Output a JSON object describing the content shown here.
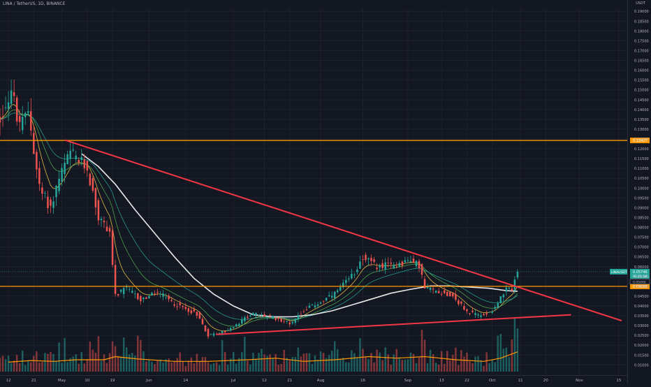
{
  "header": {
    "symbol_title": "LINA / TetherUS, 1D, BINANCE"
  },
  "axis": {
    "unit": "USDT"
  },
  "chart_data": {
    "type": "candlestick",
    "title": "LINA / TetherUS, 1D, BINANCE",
    "y_unit": "USDT",
    "ylim": [
      0.0055,
      0.1915
    ],
    "xlim": [
      "2021-04-09",
      "2021-11-18"
    ],
    "y_ticks": [
      "0.19000",
      "0.18500",
      "0.18000",
      "0.17500",
      "0.17000",
      "0.16500",
      "0.16000",
      "0.15500",
      "0.15000",
      "0.14500",
      "0.14000",
      "0.13500",
      "0.13000",
      "0.12500",
      "0.12000",
      "0.11500",
      "0.11000",
      "0.10500",
      "0.10000",
      "0.09500",
      "0.09000",
      "0.08500",
      "0.08000",
      "0.07500",
      "0.07000",
      "0.06500",
      "0.06000",
      "0.05500",
      "0.05000",
      "0.04500",
      "0.04000",
      "0.03500",
      "0.03000",
      "0.02500",
      "0.02000",
      "0.01500",
      "0.01000"
    ],
    "y_tick_values": [
      0.19,
      0.185,
      0.18,
      0.175,
      0.17,
      0.165,
      0.16,
      0.155,
      0.15,
      0.145,
      0.14,
      0.135,
      0.13,
      0.125,
      0.12,
      0.115,
      0.11,
      0.105,
      0.1,
      0.095,
      0.09,
      0.085,
      0.08,
      0.075,
      0.07,
      0.065,
      0.06,
      0.055,
      0.05,
      0.045,
      0.04,
      0.035,
      0.03,
      0.025,
      0.02,
      0.015,
      0.01
    ],
    "x_ticks": [
      {
        "label": "12",
        "date": "2021-04-12"
      },
      {
        "label": "21",
        "date": "2021-04-21"
      },
      {
        "label": "May",
        "date": "2021-05-01"
      },
      {
        "label": "10",
        "date": "2021-05-10"
      },
      {
        "label": "19",
        "date": "2021-05-19"
      },
      {
        "label": "Jun",
        "date": "2021-06-01"
      },
      {
        "label": "14",
        "date": "2021-06-14"
      },
      {
        "label": "Jul",
        "date": "2021-07-01"
      },
      {
        "label": "12",
        "date": "2021-07-12"
      },
      {
        "label": "21",
        "date": "2021-07-21"
      },
      {
        "label": "Aug",
        "date": "2021-08-01"
      },
      {
        "label": "16",
        "date": "2021-08-16"
      },
      {
        "label": "Sep",
        "date": "2021-09-01"
      },
      {
        "label": "13",
        "date": "2021-09-13"
      },
      {
        "label": "22",
        "date": "2021-09-22"
      },
      {
        "label": "Oct",
        "date": "2021-10-01"
      },
      {
        "label": "11",
        "date": "2021-10-11"
      },
      {
        "label": "20",
        "date": "2021-10-20"
      },
      {
        "label": "Nov",
        "date": "2021-11-01"
      },
      {
        "label": "15",
        "date": "2021-11-15"
      }
    ],
    "price_path": [
      [
        "2021-04-09",
        0.135
      ],
      [
        "2021-04-13",
        0.15
      ],
      [
        "2021-04-16",
        0.13
      ],
      [
        "2021-04-19",
        0.14
      ],
      [
        "2021-04-23",
        0.1
      ],
      [
        "2021-04-27",
        0.09
      ],
      [
        "2021-04-30",
        0.105
      ],
      [
        "2021-05-04",
        0.118
      ],
      [
        "2021-05-10",
        0.11
      ],
      [
        "2021-05-14",
        0.085
      ],
      [
        "2021-05-18",
        0.078
      ],
      [
        "2021-05-20",
        0.045
      ],
      [
        "2021-05-24",
        0.049
      ],
      [
        "2021-05-29",
        0.043
      ],
      [
        "2021-06-04",
        0.047
      ],
      [
        "2021-06-10",
        0.041
      ],
      [
        "2021-06-18",
        0.036
      ],
      [
        "2021-06-22",
        0.025
      ],
      [
        "2021-06-28",
        0.027
      ],
      [
        "2021-07-02",
        0.03
      ],
      [
        "2021-07-07",
        0.036
      ],
      [
        "2021-07-12",
        0.035
      ],
      [
        "2021-07-18",
        0.033
      ],
      [
        "2021-07-21",
        0.031
      ],
      [
        "2021-07-26",
        0.038
      ],
      [
        "2021-08-01",
        0.042
      ],
      [
        "2021-08-06",
        0.046
      ],
      [
        "2021-08-12",
        0.055
      ],
      [
        "2021-08-16",
        0.065
      ],
      [
        "2021-08-21",
        0.06
      ],
      [
        "2021-08-27",
        0.061
      ],
      [
        "2021-09-01",
        0.063
      ],
      [
        "2021-09-05",
        0.061
      ],
      [
        "2021-09-07",
        0.049
      ],
      [
        "2021-09-13",
        0.047
      ],
      [
        "2021-09-17",
        0.045
      ],
      [
        "2021-09-22",
        0.037
      ],
      [
        "2021-09-27",
        0.035
      ],
      [
        "2021-10-01",
        0.038
      ],
      [
        "2021-10-04",
        0.044
      ],
      [
        "2021-10-06",
        0.048
      ],
      [
        "2021-10-08",
        0.049
      ],
      [
        "2021-10-10",
        0.05746
      ]
    ],
    "price_marks": [
      {
        "kind": "last_price",
        "value": 0.05746,
        "label": "LINAUSDT",
        "value_text": "0.05746",
        "countdown": "05:21:18"
      },
      {
        "kind": "level",
        "value": 0.05,
        "value_text": "0.05000"
      }
    ],
    "overlays": {
      "horizontal_levels": [
        {
          "name": "resistance",
          "value": 0.12427,
          "value_text": "0.12427",
          "color": "#ff9800"
        },
        {
          "name": "support",
          "value": 0.05,
          "value_text": "0.05000",
          "color": "#ff9800"
        }
      ],
      "trendlines": [
        {
          "name": "descending-trendline",
          "color": "#f23645",
          "from": [
            "2021-05-02",
            0.1245
          ],
          "to": [
            "2021-11-16",
            0.0325
          ]
        },
        {
          "name": "ascending-trendline",
          "color": "#f23645",
          "from": [
            "2021-06-25",
            0.0255
          ],
          "to": [
            "2021-10-29",
            0.0355
          ]
        }
      ],
      "moving_average_path": [
        [
          "2021-05-08",
          0.1175
        ],
        [
          "2021-05-14",
          0.111
        ],
        [
          "2021-05-20",
          0.102
        ],
        [
          "2021-05-27",
          0.089
        ],
        [
          "2021-06-03",
          0.077
        ],
        [
          "2021-06-10",
          0.065
        ],
        [
          "2021-06-17",
          0.054
        ],
        [
          "2021-06-24",
          0.046
        ],
        [
          "2021-07-01",
          0.04
        ],
        [
          "2021-07-08",
          0.0355
        ],
        [
          "2021-07-15",
          0.0345
        ],
        [
          "2021-07-22",
          0.0345
        ],
        [
          "2021-07-29",
          0.0355
        ],
        [
          "2021-08-05",
          0.0375
        ],
        [
          "2021-08-12",
          0.0405
        ],
        [
          "2021-08-19",
          0.0435
        ],
        [
          "2021-08-26",
          0.0465
        ],
        [
          "2021-09-02",
          0.0485
        ],
        [
          "2021-09-09",
          0.0502
        ],
        [
          "2021-09-16",
          0.0502
        ],
        [
          "2021-09-23",
          0.0496
        ],
        [
          "2021-09-30",
          0.049
        ],
        [
          "2021-10-06",
          0.0478
        ],
        [
          "2021-10-10",
          0.0475
        ]
      ]
    },
    "volume": {
      "ylim": [
        0,
        0.03
      ],
      "path": [
        [
          "2021-04-12",
          0.006
        ],
        [
          "2021-04-20",
          0.007
        ],
        [
          "2021-04-28",
          0.0065
        ],
        [
          "2021-05-06",
          0.0075
        ],
        [
          "2021-05-16",
          0.0075
        ],
        [
          "2021-05-20",
          0.0095
        ],
        [
          "2021-05-28",
          0.008
        ],
        [
          "2021-06-10",
          0.0065
        ],
        [
          "2021-06-22",
          0.0065
        ],
        [
          "2021-07-06",
          0.0075
        ],
        [
          "2021-07-16",
          0.0085
        ],
        [
          "2021-07-26",
          0.0065
        ],
        [
          "2021-08-06",
          0.0075
        ],
        [
          "2021-08-18",
          0.0095
        ],
        [
          "2021-08-28",
          0.0085
        ],
        [
          "2021-09-07",
          0.0095
        ],
        [
          "2021-09-18",
          0.0075
        ],
        [
          "2021-09-28",
          0.0065
        ],
        [
          "2021-10-04",
          0.0085
        ],
        [
          "2021-10-10",
          0.0125
        ]
      ]
    }
  }
}
